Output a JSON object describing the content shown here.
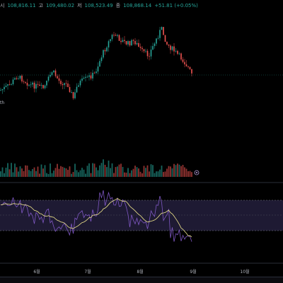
{
  "ohlc": {
    "open_label": "시",
    "open_value": "108,816.11",
    "high_label": "고",
    "high_value": "109,480.02",
    "low_label": "저",
    "low_value": "108,523.49",
    "close_label": "종",
    "close_value": "108,868.14",
    "change_value": "+51.81 (+0.05%)"
  },
  "colors": {
    "up": "#26a69a",
    "down": "#ef5350",
    "rsi": "#7e57c2",
    "rsi_ma": "#f0e68c",
    "rsi_band": "#1e1a33",
    "price_line": "#26a69a"
  },
  "time_axis": [
    "6월",
    "7월",
    "8월",
    "9월",
    "10월"
  ],
  "icons": {
    "volume_marker": "circle-icon"
  }
}
